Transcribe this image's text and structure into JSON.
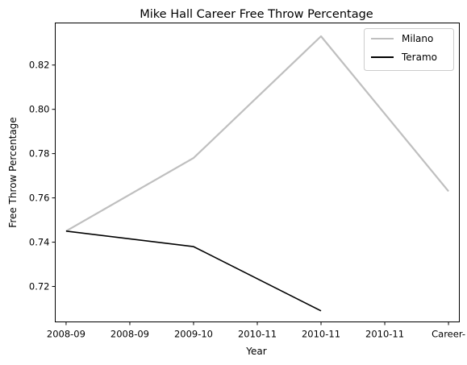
{
  "chart_data": {
    "type": "line",
    "title": "Mike Hall  Career Free Throw Percentage",
    "xlabel": "Year",
    "ylabel": "Free Throw Percentage",
    "x_tick_labels": [
      "2008-09",
      "2008-09",
      "2009-10",
      "2010-11",
      "2010-11",
      "2010-11",
      "Career-"
    ],
    "x_tick_positions": [
      0,
      1,
      2,
      3,
      4,
      5,
      6
    ],
    "xlim": [
      -0.17,
      6.17
    ],
    "ylim": [
      0.704,
      0.839
    ],
    "y_ticks": [
      0.72,
      0.74,
      0.76,
      0.78,
      0.8,
      0.82
    ],
    "y_tick_labels": [
      "0.72",
      "0.74",
      "0.76",
      "0.78",
      "0.80",
      "0.82"
    ],
    "grid": false,
    "legend_position": "top-right",
    "series": [
      {
        "name": "Milano",
        "color": "#bfbfbf",
        "x": [
          0,
          2,
          4,
          6
        ],
        "y": [
          0.745,
          0.778,
          0.833,
          0.763
        ]
      },
      {
        "name": "Teramo",
        "color": "#000000",
        "x": [
          0,
          2,
          4
        ],
        "y": [
          0.745,
          0.738,
          0.709
        ]
      }
    ]
  }
}
